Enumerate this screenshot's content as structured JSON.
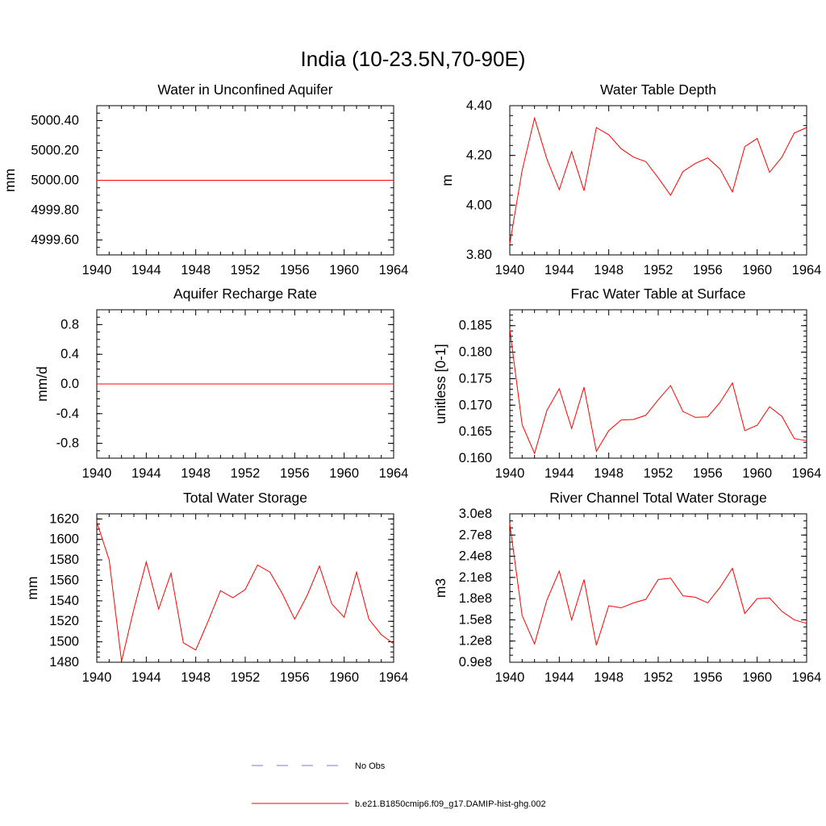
{
  "figure": {
    "title": "India (10-23.5N,70-90E)"
  },
  "legend": {
    "items": [
      {
        "label": "No Obs",
        "style": "dashed",
        "color": "#7b7bd0"
      },
      {
        "label": "b.e21.B1850cmip6.f09_g17.DAMIP-hist-ghg.002",
        "style": "solid",
        "color": "#ff0000"
      }
    ]
  },
  "chart_data": [
    {
      "type": "line",
      "title": "Water in Unconfined Aquifer",
      "ylabel": "mm",
      "xlim": [
        1940,
        1964
      ],
      "ylim": [
        4999.5,
        5000.5
      ],
      "xticks": [
        1940,
        1944,
        1948,
        1952,
        1956,
        1960,
        1964
      ],
      "xtick_labels": [
        "1940",
        "1944",
        "1948",
        "1952",
        "1956",
        "1960",
        "1964"
      ],
      "yticks": [
        4999.6,
        4999.8,
        5000.0,
        5000.2,
        5000.4
      ],
      "ytick_labels": [
        "4999.60",
        "4999.80",
        "5000.00",
        "5000.20",
        "5000.40"
      ],
      "yminor_step": 0.05,
      "x": [
        1940,
        1964
      ],
      "series": [
        {
          "values": [
            5000.0,
            5000.0
          ],
          "color": "#ff0000"
        }
      ]
    },
    {
      "type": "line",
      "title": "Water Table Depth",
      "ylabel": "m",
      "xlim": [
        1940,
        1964
      ],
      "ylim": [
        3.8,
        4.4
      ],
      "xticks": [
        1940,
        1944,
        1948,
        1952,
        1956,
        1960,
        1964
      ],
      "xtick_labels": [
        "1940",
        "1944",
        "1948",
        "1952",
        "1956",
        "1960",
        "1964"
      ],
      "yticks": [
        3.8,
        4.0,
        4.2,
        4.4
      ],
      "ytick_labels": [
        "3.80",
        "4.00",
        "4.20",
        "4.40"
      ],
      "yminor_step": 0.04,
      "x": [
        1940,
        1941,
        1942,
        1943,
        1944,
        1945,
        1946,
        1947,
        1948,
        1949,
        1950,
        1951,
        1952,
        1953,
        1954,
        1955,
        1956,
        1957,
        1958,
        1959,
        1960,
        1961,
        1962,
        1963,
        1964
      ],
      "series": [
        {
          "values": [
            3.845,
            4.14,
            4.35,
            4.185,
            4.062,
            4.215,
            4.058,
            4.312,
            4.283,
            4.227,
            4.193,
            4.175,
            4.11,
            4.04,
            4.135,
            4.168,
            4.19,
            4.145,
            4.053,
            4.235,
            4.268,
            4.132,
            4.193,
            4.29,
            4.312
          ],
          "color": "#ff0000"
        }
      ]
    },
    {
      "type": "line",
      "title": "Aquifer Recharge Rate",
      "ylabel": "mm/d",
      "xlim": [
        1940,
        1964
      ],
      "ylim": [
        -1.0,
        1.0
      ],
      "xticks": [
        1940,
        1944,
        1948,
        1952,
        1956,
        1960,
        1964
      ],
      "xtick_labels": [
        "1940",
        "1944",
        "1948",
        "1952",
        "1956",
        "1960",
        "1964"
      ],
      "yticks": [
        -0.8,
        -0.4,
        0.0,
        0.4,
        0.8
      ],
      "ytick_labels": [
        "-0.8",
        "-0.4",
        "0.0",
        "0.4",
        "0.8"
      ],
      "yminor_step": 0.1,
      "x": [
        1940,
        1964
      ],
      "series": [
        {
          "values": [
            0.0,
            0.0
          ],
          "color": "#ff0000"
        }
      ]
    },
    {
      "type": "line",
      "title": "Frac Water Table at Surface",
      "ylabel": "unitless [0-1]",
      "xlim": [
        1940,
        1964
      ],
      "ylim": [
        0.16,
        0.188
      ],
      "xticks": [
        1940,
        1944,
        1948,
        1952,
        1956,
        1960,
        1964
      ],
      "xtick_labels": [
        "1940",
        "1944",
        "1948",
        "1952",
        "1956",
        "1960",
        "1964"
      ],
      "yticks": [
        0.16,
        0.165,
        0.17,
        0.175,
        0.18,
        0.185
      ],
      "ytick_labels": [
        "0.160",
        "0.165",
        "0.170",
        "0.175",
        "0.180",
        "0.185"
      ],
      "yminor_step": 0.001,
      "x": [
        1940,
        1941,
        1942,
        1943,
        1944,
        1945,
        1946,
        1947,
        1948,
        1949,
        1950,
        1951,
        1952,
        1953,
        1954,
        1955,
        1956,
        1957,
        1958,
        1959,
        1960,
        1961,
        1962,
        1963,
        1964
      ],
      "series": [
        {
          "values": [
            0.1843,
            0.1663,
            0.1609,
            0.169,
            0.1731,
            0.1656,
            0.1734,
            0.1613,
            0.1652,
            0.1672,
            0.1673,
            0.1681,
            0.171,
            0.1737,
            0.1688,
            0.1677,
            0.1678,
            0.1705,
            0.1742,
            0.1652,
            0.1662,
            0.1697,
            0.1679,
            0.1637,
            0.1633
          ],
          "color": "#ff0000"
        }
      ]
    },
    {
      "type": "line",
      "title": "Total Water Storage",
      "ylabel": "mm",
      "xlim": [
        1940,
        1964
      ],
      "ylim": [
        1480,
        1625
      ],
      "xticks": [
        1940,
        1944,
        1948,
        1952,
        1956,
        1960,
        1964
      ],
      "xtick_labels": [
        "1940",
        "1944",
        "1948",
        "1952",
        "1956",
        "1960",
        "1964"
      ],
      "yticks": [
        1480,
        1500,
        1520,
        1540,
        1560,
        1580,
        1600,
        1620
      ],
      "ytick_labels": [
        "1480",
        "1500",
        "1520",
        "1540",
        "1560",
        "1580",
        "1600",
        "1620"
      ],
      "yminor_step": 5,
      "x": [
        1940,
        1941,
        1942,
        1943,
        1944,
        1945,
        1946,
        1947,
        1948,
        1949,
        1950,
        1951,
        1952,
        1953,
        1954,
        1955,
        1956,
        1957,
        1958,
        1959,
        1960,
        1961,
        1962,
        1963,
        1964
      ],
      "series": [
        {
          "values": [
            1617,
            1580,
            1481,
            1532,
            1578,
            1532,
            1567,
            1499,
            1492,
            1520,
            1550,
            1543,
            1551,
            1575,
            1568,
            1547,
            1522,
            1545,
            1574,
            1537,
            1524,
            1568,
            1522,
            1507,
            1498
          ],
          "color": "#ff0000"
        }
      ]
    },
    {
      "type": "line",
      "title": "River Channel Total Water Storage",
      "ylabel": "m3",
      "xlim": [
        1940,
        1964
      ],
      "ylim": [
        90000000.0,
        300000000.0
      ],
      "xticks": [
        1940,
        1944,
        1948,
        1952,
        1956,
        1960,
        1964
      ],
      "xtick_labels": [
        "1940",
        "1944",
        "1948",
        "1952",
        "1956",
        "1960",
        "1964"
      ],
      "yticks": [
        90000000.0,
        120000000.0,
        150000000.0,
        180000000.0,
        210000000.0,
        240000000.0,
        270000000.0,
        300000000.0
      ],
      "ytick_labels": [
        "0.9e8",
        "1.2e8",
        "1.5e8",
        "1.8e8",
        "2.1e8",
        "2.4e8",
        "2.7e8",
        "3.0e8"
      ],
      "yminor_step": 10000000.0,
      "x": [
        1940,
        1941,
        1942,
        1943,
        1944,
        1945,
        1946,
        1947,
        1948,
        1949,
        1950,
        1951,
        1952,
        1953,
        1954,
        1955,
        1956,
        1957,
        1958,
        1959,
        1960,
        1961,
        1962,
        1963,
        1964
      ],
      "series": [
        {
          "values": [
            286000000.0,
            156000000.0,
            116000000.0,
            178000000.0,
            219000000.0,
            150000000.0,
            207000000.0,
            114000000.0,
            170000000.0,
            167000000.0,
            174000000.0,
            179000000.0,
            207000000.0,
            209000000.0,
            184000000.0,
            182000000.0,
            174000000.0,
            196000000.0,
            223000000.0,
            159000000.0,
            180000000.0,
            181000000.0,
            162000000.0,
            150000000.0,
            145000000.0
          ],
          "color": "#ff0000"
        }
      ]
    }
  ]
}
